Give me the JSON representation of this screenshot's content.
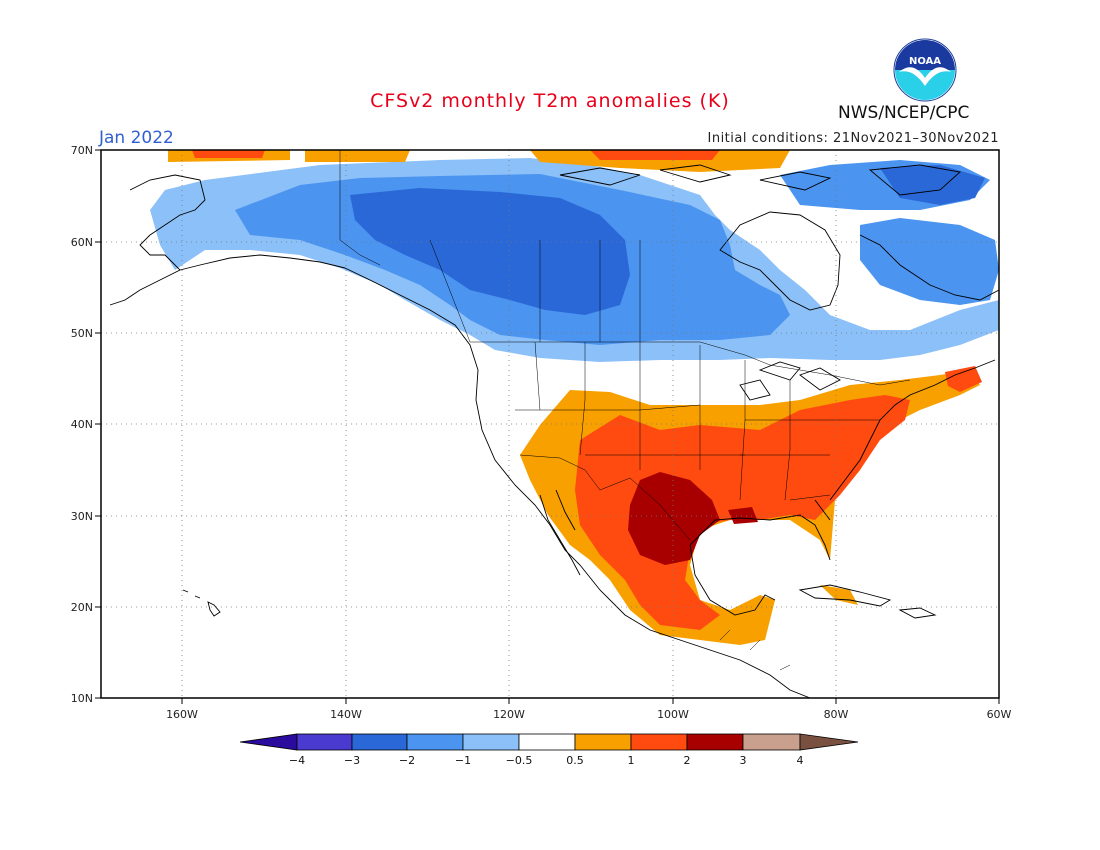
{
  "header": {
    "title": "CFSv2 monthly T2m anomalies (K)",
    "month": "Jan 2022",
    "initial_conditions": "Initial conditions: 21Nov2021–30Nov2021",
    "agency": "NWS/NCEP/CPC",
    "logo_text": "NOAA"
  },
  "map": {
    "projection": "lat-lon",
    "lon_range": [
      -170,
      -60
    ],
    "lat_range": [
      10,
      70
    ],
    "lon_ticks": [
      "160W",
      "140W",
      "120W",
      "100W",
      "80W",
      "60W"
    ],
    "lat_ticks": [
      "70N",
      "60N",
      "50N",
      "40N",
      "30N",
      "20N",
      "10N"
    ],
    "grid": true
  },
  "colorbar": {
    "labels": [
      "−4",
      "−3",
      "−2",
      "−1",
      "−0.5",
      "0.5",
      "1",
      "2",
      "3",
      "4"
    ],
    "colors": [
      "#2b0b9e",
      "#4a3ad0",
      "#2a68d8",
      "#4b94f0",
      "#8cc0f8",
      "#ffffff",
      "#f7a000",
      "#ff4a10",
      "#a80000",
      "#c9a08e",
      "#7a5040"
    ]
  },
  "colors": {
    "title": "#e8001a",
    "month": "#3060d0",
    "land_outline": "#000000"
  }
}
